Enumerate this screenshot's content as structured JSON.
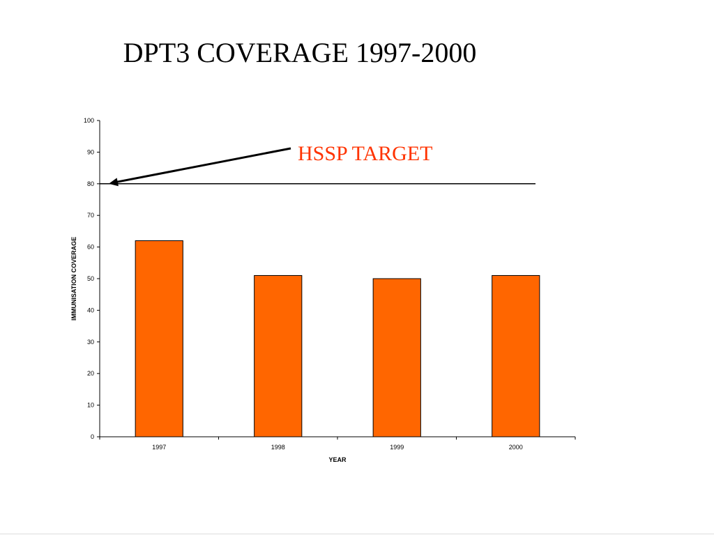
{
  "slide": {
    "title": "DPT3 COVERAGE 1997-2000"
  },
  "chart_data": {
    "type": "bar",
    "title": "",
    "xlabel": "YEAR",
    "ylabel": "IMMUNISATION COVERAGE",
    "categories": [
      "1997",
      "1998",
      "1999",
      "2000"
    ],
    "values": [
      62,
      51,
      50,
      51
    ],
    "ylim": [
      0,
      100
    ],
    "yticks": [
      0,
      10,
      20,
      30,
      40,
      50,
      60,
      70,
      80,
      90,
      100
    ],
    "grid": false,
    "legend": "none",
    "bar_color": "#FF6600",
    "reference_line": {
      "value": 80,
      "label": "HSSP TARGET",
      "label_color": "#FF3300"
    }
  }
}
